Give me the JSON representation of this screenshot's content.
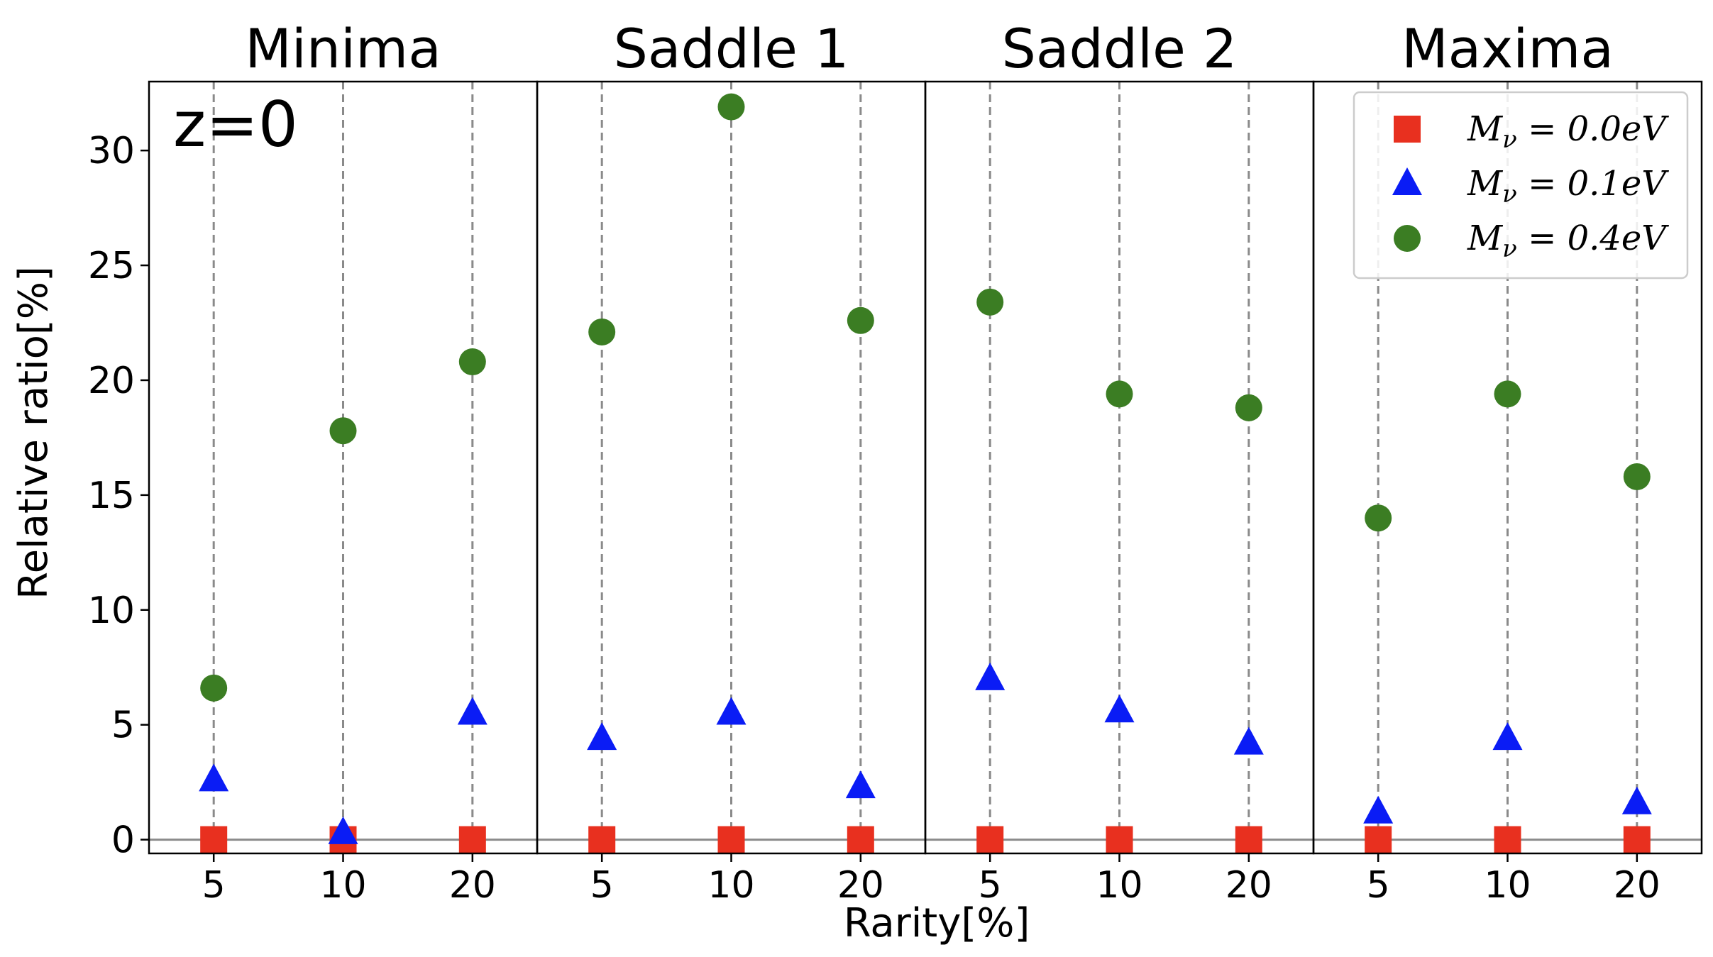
{
  "chart_data": {
    "type": "scatter",
    "ylabel": "Relative ratio[%]",
    "xlabel": "Rarity[%]",
    "annotation": "z=0",
    "ylim": [
      -0.6,
      33
    ],
    "yticks": [
      0,
      5,
      10,
      15,
      20,
      25,
      30
    ],
    "categories": [
      "5",
      "10",
      "20"
    ],
    "grid": "vertical dashed lines at each category",
    "legend_position": "top-right",
    "zero_line": true,
    "panels": [
      {
        "title": "Minima",
        "series": [
          {
            "values": [
              0,
              0,
              0
            ]
          },
          {
            "values": [
              2.6,
              0.3,
              5.5
            ]
          },
          {
            "values": [
              6.6,
              17.8,
              20.8
            ]
          }
        ]
      },
      {
        "title": "Saddle 1",
        "series": [
          {
            "values": [
              0,
              0,
              0
            ]
          },
          {
            "values": [
              4.4,
              5.5,
              2.3
            ]
          },
          {
            "values": [
              22.1,
              31.9,
              22.6
            ]
          }
        ]
      },
      {
        "title": "Saddle 2",
        "series": [
          {
            "values": [
              0,
              0,
              0
            ]
          },
          {
            "values": [
              7.0,
              5.6,
              4.2
            ]
          },
          {
            "values": [
              23.4,
              19.4,
              18.8
            ]
          }
        ]
      },
      {
        "title": "Maxima",
        "series": [
          {
            "values": [
              0,
              0,
              0
            ]
          },
          {
            "values": [
              1.2,
              4.4,
              1.6
            ]
          },
          {
            "values": [
              14.0,
              19.4,
              15.8
            ]
          }
        ]
      }
    ],
    "legend": [
      {
        "name": "M_ν = 0.0eV",
        "pre": "M",
        "sub": "ν",
        "post": " = 0.0eV",
        "marker": "square",
        "color": "#e8301f"
      },
      {
        "name": "M_ν = 0.1eV",
        "pre": "M",
        "sub": "ν",
        "post": " = 0.1eV",
        "marker": "triangle",
        "color": "#0a1cf5"
      },
      {
        "name": "M_ν = 0.4eV",
        "pre": "M",
        "sub": "ν",
        "post": " = 0.4eV",
        "marker": "circle",
        "color": "#3b7d23"
      }
    ]
  }
}
